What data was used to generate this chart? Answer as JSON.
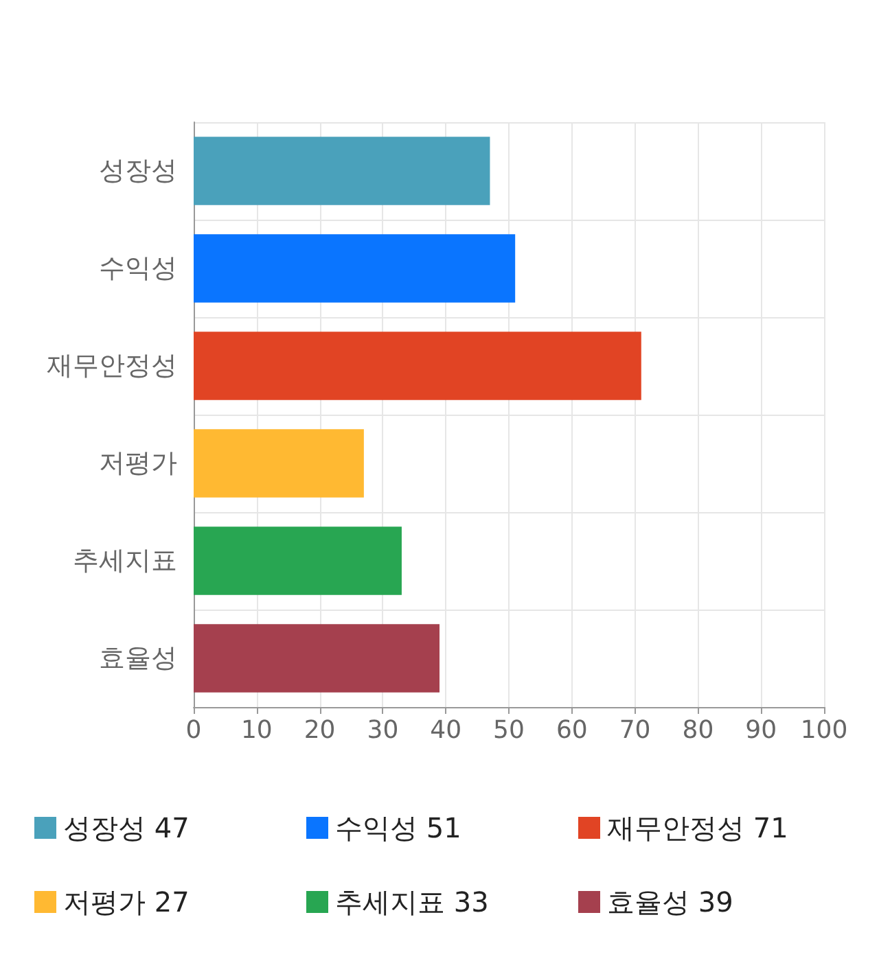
{
  "chart_data": {
    "type": "bar",
    "orientation": "horizontal",
    "stacked": true,
    "categories": [
      "성장성",
      "수익성",
      "재무안정성",
      "저평가",
      "추세지표",
      "효율성"
    ],
    "series": [
      {
        "name": "성장성 47",
        "color": "#4aa1bb",
        "values": [
          47,
          null,
          null,
          null,
          null,
          null
        ]
      },
      {
        "name": "수익성 51",
        "color": "#0a75ff",
        "values": [
          null,
          51,
          null,
          null,
          null,
          null
        ]
      },
      {
        "name": "재무안정성 71",
        "color": "#e14424",
        "values": [
          null,
          null,
          71,
          null,
          null,
          null
        ]
      },
      {
        "name": "저평가 27",
        "color": "#ffb932",
        "values": [
          null,
          null,
          null,
          27,
          null,
          null
        ]
      },
      {
        "name": "추세지표 33",
        "color": "#28a652",
        "values": [
          null,
          null,
          null,
          null,
          33,
          null
        ]
      },
      {
        "name": "효율성 39",
        "color": "#a5404e",
        "values": [
          null,
          null,
          null,
          null,
          null,
          39
        ]
      }
    ],
    "xlim": [
      0,
      100
    ],
    "xticks": [
      0,
      10,
      20,
      30,
      40,
      50,
      60,
      70,
      80,
      90,
      100
    ],
    "grid": true,
    "legend": "bottom"
  }
}
